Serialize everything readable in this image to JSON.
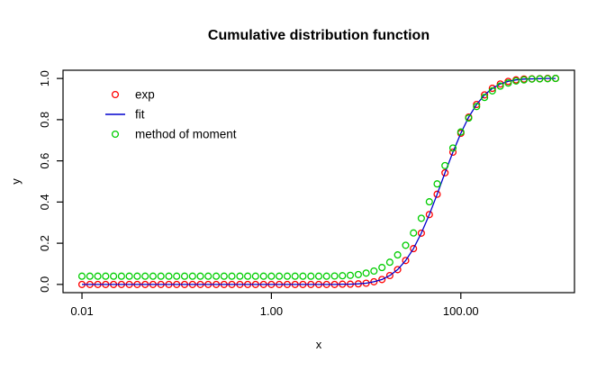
{
  "window": {
    "background": "#ffffff"
  },
  "chart_data": {
    "type": "scatter",
    "title": "Cumulative distribution function",
    "xlabel": "x",
    "ylabel": "y",
    "x_scale": "log10",
    "grid": false,
    "xlim_log10": [
      -2.2,
      3.2
    ],
    "ylim": [
      -0.04,
      1.04
    ],
    "x_ticks": [
      {
        "log10": -2,
        "label": "0.01"
      },
      {
        "log10": 0,
        "label": "1.00"
      },
      {
        "log10": 2,
        "label": "100.00"
      }
    ],
    "y_ticks": [
      {
        "value": 0.0,
        "label": "0.0"
      },
      {
        "value": 0.2,
        "label": "0.2"
      },
      {
        "value": 0.4,
        "label": "0.4"
      },
      {
        "value": 0.6,
        "label": "0.6"
      },
      {
        "value": 0.8,
        "label": "0.8"
      },
      {
        "value": 1.0,
        "label": "1.0"
      }
    ],
    "legend": [
      {
        "label": "exp",
        "marker": "circle",
        "color": "#ff0000"
      },
      {
        "label": "fit",
        "marker": "line",
        "color": "#0000cd"
      },
      {
        "label": "method of moment",
        "marker": "circle",
        "color": "#00cd00"
      }
    ],
    "legend_position": "top-left",
    "x_log10": [
      -2,
      -1.917,
      -1.833,
      -1.75,
      -1.667,
      -1.583,
      -1.5,
      -1.417,
      -1.333,
      -1.25,
      -1.167,
      -1.083,
      -1,
      -0.917,
      -0.833,
      -0.75,
      -0.667,
      -0.583,
      -0.5,
      -0.417,
      -0.333,
      -0.25,
      -0.167,
      -0.083,
      0,
      0.083,
      0.167,
      0.25,
      0.333,
      0.417,
      0.5,
      0.583,
      0.667,
      0.75,
      0.833,
      0.917,
      1,
      1.083,
      1.167,
      1.25,
      1.333,
      1.417,
      1.5,
      1.583,
      1.667,
      1.75,
      1.833,
      1.917,
      2,
      2.083,
      2.167,
      2.25,
      2.333,
      2.417,
      2.5,
      2.583,
      2.667,
      2.75,
      2.833,
      2.917,
      3
    ],
    "series": [
      {
        "name": "exp",
        "render": "points",
        "color": "#ff0000",
        "values": [
          0,
          0,
          0,
          0,
          0,
          0,
          0,
          0,
          0,
          0,
          0,
          0,
          0,
          0,
          0,
          0,
          0,
          0,
          0,
          0,
          0,
          0,
          0,
          0,
          0,
          0,
          0,
          0,
          0,
          0,
          0,
          0,
          0,
          0.001,
          0.001,
          0.003,
          0.006,
          0.013,
          0.024,
          0.043,
          0.072,
          0.116,
          0.174,
          0.249,
          0.339,
          0.438,
          0.542,
          0.642,
          0.734,
          0.812,
          0.874,
          0.92,
          0.952,
          0.973,
          0.986,
          0.993,
          0.997,
          0.998,
          0.999,
          1,
          1
        ]
      },
      {
        "name": "fit",
        "render": "line",
        "color": "#0000cd",
        "values": [
          0,
          0,
          0,
          0,
          0,
          0,
          0,
          0,
          0,
          0,
          0,
          0,
          0,
          0,
          0,
          0,
          0,
          0,
          0,
          0,
          0,
          0,
          0,
          0,
          0,
          0,
          0,
          0,
          0,
          0,
          0,
          0,
          0,
          0.001,
          0.001,
          0.003,
          0.006,
          0.013,
          0.024,
          0.043,
          0.072,
          0.116,
          0.174,
          0.249,
          0.339,
          0.438,
          0.542,
          0.642,
          0.734,
          0.812,
          0.874,
          0.92,
          0.952,
          0.973,
          0.986,
          0.993,
          0.997,
          0.998,
          0.999,
          1,
          1
        ]
      },
      {
        "name": "method of moment",
        "render": "points",
        "color": "#00cd00",
        "values": [
          0.04,
          0.04,
          0.04,
          0.04,
          0.04,
          0.04,
          0.04,
          0.04,
          0.04,
          0.04,
          0.04,
          0.04,
          0.04,
          0.04,
          0.04,
          0.04,
          0.04,
          0.04,
          0.04,
          0.04,
          0.04,
          0.04,
          0.04,
          0.04,
          0.04,
          0.04,
          0.04,
          0.04,
          0.04,
          0.04,
          0.04,
          0.04,
          0.041,
          0.042,
          0.044,
          0.048,
          0.055,
          0.065,
          0.082,
          0.108,
          0.143,
          0.19,
          0.25,
          0.321,
          0.401,
          0.488,
          0.577,
          0.662,
          0.74,
          0.808,
          0.864,
          0.908,
          0.94,
          0.963,
          0.978,
          0.988,
          0.993,
          0.997,
          0.998,
          0.999,
          1
        ]
      }
    ]
  }
}
